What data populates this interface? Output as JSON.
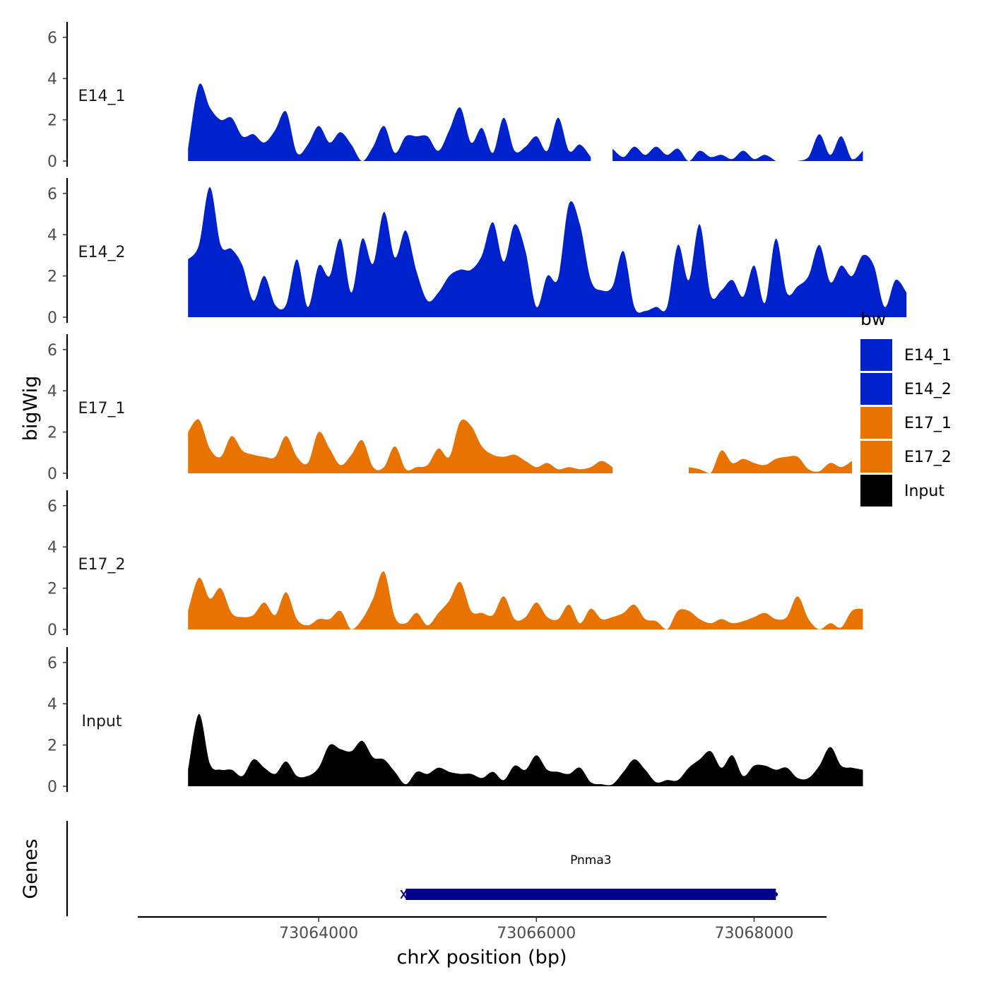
{
  "chart_data": {
    "type": "area",
    "title": "",
    "ylabel": "bigWig",
    "xlabel": "chrX position (bp)",
    "xlim": [
      73062500,
      73068500
    ],
    "x_ticks": [
      73064000,
      73066000,
      73068000
    ],
    "x_tick_labels": [
      "73064000",
      "73066000",
      "73068000"
    ],
    "ylim": [
      0,
      6.6
    ],
    "y_ticks": [
      0,
      2,
      4,
      6
    ],
    "y_tick_labels": [
      "0",
      "2",
      "4",
      "6"
    ],
    "legend": {
      "title": "bw",
      "position": "right",
      "entries": [
        {
          "label": "E14_1",
          "color": "#0022CC"
        },
        {
          "label": "E14_2",
          "color": "#0022CC"
        },
        {
          "label": "E17_1",
          "color": "#E87300"
        },
        {
          "label": "E17_2",
          "color": "#E87300"
        },
        {
          "label": "Input",
          "color": "#000000"
        }
      ]
    },
    "series": [
      {
        "name": "E14_1",
        "color": "#0022CC",
        "x0": 73062800,
        "step": 100,
        "values": [
          0.6,
          3.7,
          2.6,
          2.0,
          2.1,
          1.2,
          1.3,
          0.9,
          1.5,
          2.4,
          0.4,
          0.8,
          1.7,
          0.9,
          1.4,
          0.8,
          0.0,
          0.7,
          1.7,
          0.4,
          1.2,
          1.2,
          1.2,
          0.5,
          1.5,
          2.6,
          0.9,
          1.6,
          0.4,
          2.1,
          0.5,
          0.7,
          1.2,
          0.5,
          2.1,
          0.5,
          0.8,
          0.2,
          null,
          0.6,
          0.2,
          0.7,
          0.3,
          0.7,
          0.3,
          0.6,
          0.0,
          0.5,
          0.2,
          0.3,
          0.1,
          0.5,
          0.1,
          0.3,
          0.0,
          null,
          0.0,
          0.2,
          1.3,
          0.3,
          1.2,
          0.1,
          0.5
        ]
      },
      {
        "name": "E14_2",
        "color": "#0022CC",
        "x0": 73062800,
        "step": 100,
        "values": [
          2.8,
          3.5,
          6.3,
          3.5,
          3.3,
          2.5,
          0.8,
          2.0,
          0.6,
          0.6,
          2.8,
          0.5,
          2.5,
          2.0,
          3.8,
          1.2,
          3.8,
          2.6,
          5.1,
          2.9,
          4.2,
          2.2,
          0.8,
          1.2,
          2.0,
          2.3,
          2.3,
          3.0,
          4.6,
          2.7,
          4.5,
          3.2,
          0.5,
          2.0,
          1.9,
          5.5,
          4.5,
          1.8,
          1.3,
          1.5,
          3.2,
          0.5,
          0.3,
          0.5,
          0.5,
          3.5,
          1.8,
          4.5,
          1.1,
          1.3,
          1.8,
          1.0,
          2.5,
          0.7,
          3.8,
          1.2,
          1.5,
          2.0,
          3.5,
          1.7,
          2.5,
          2.0,
          3.0,
          2.5,
          0.5,
          1.8,
          1.2
        ]
      },
      {
        "name": "E17_1",
        "color": "#E87300",
        "x0": 73062800,
        "step": 100,
        "values": [
          2.0,
          2.6,
          1.2,
          0.8,
          1.8,
          1.1,
          0.9,
          0.8,
          0.8,
          1.8,
          0.8,
          0.5,
          2.0,
          1.2,
          0.4,
          0.9,
          1.6,
          0.3,
          0.3,
          1.3,
          0.2,
          0.3,
          0.4,
          1.2,
          0.8,
          2.5,
          2.3,
          1.3,
          0.9,
          0.8,
          0.9,
          0.6,
          0.3,
          0.5,
          0.2,
          0.3,
          0.2,
          0.3,
          0.6,
          0.3,
          null,
          null,
          null,
          null,
          null,
          null,
          0.3,
          0.2,
          0.0,
          1.1,
          0.5,
          0.7,
          0.5,
          0.4,
          0.7,
          0.8,
          0.8,
          0.2,
          0.1,
          0.5,
          0.3,
          0.6
        ]
      },
      {
        "name": "E17_2",
        "color": "#E87300",
        "x0": 73062800,
        "step": 100,
        "values": [
          0.9,
          2.5,
          1.5,
          2.0,
          0.8,
          0.6,
          0.7,
          1.3,
          0.7,
          1.8,
          0.5,
          0.2,
          0.5,
          0.5,
          0.9,
          0.0,
          0.5,
          1.5,
          2.8,
          0.6,
          0.3,
          0.8,
          0.2,
          0.8,
          1.4,
          2.3,
          0.9,
          0.8,
          0.7,
          1.6,
          0.5,
          0.6,
          1.3,
          0.6,
          0.5,
          1.2,
          0.3,
          1.0,
          0.5,
          0.6,
          0.8,
          1.2,
          0.5,
          0.4,
          0.0,
          0.9,
          0.9,
          0.5,
          0.3,
          0.5,
          0.3,
          0.4,
          0.6,
          0.8,
          0.5,
          0.6,
          1.6,
          0.5,
          0.0,
          0.3,
          0.1,
          0.9,
          1.0
        ]
      },
      {
        "name": "Input",
        "color": "#000000",
        "x0": 73062800,
        "step": 100,
        "values": [
          0.8,
          3.5,
          1.1,
          0.8,
          0.8,
          0.5,
          1.3,
          0.9,
          0.6,
          1.2,
          0.5,
          0.5,
          0.9,
          2.0,
          1.8,
          1.7,
          2.2,
          1.4,
          1.3,
          0.7,
          0.1,
          0.7,
          0.6,
          0.9,
          0.7,
          0.6,
          0.6,
          0.4,
          0.7,
          0.3,
          1.0,
          0.8,
          1.5,
          0.8,
          0.7,
          0.6,
          0.9,
          0.2,
          0.1,
          0.1,
          0.7,
          1.3,
          0.8,
          0.2,
          0.3,
          0.3,
          0.9,
          1.3,
          1.7,
          0.9,
          1.5,
          0.5,
          1.0,
          1.0,
          0.8,
          0.9,
          0.4,
          0.4,
          1.0,
          1.9,
          1.0,
          0.9,
          0.8
        ]
      }
    ],
    "genes": {
      "label": "Genes",
      "items": [
        {
          "name": "Pnma3",
          "start": 73064800,
          "end": 73068200,
          "color": "#00008B"
        }
      ]
    }
  }
}
